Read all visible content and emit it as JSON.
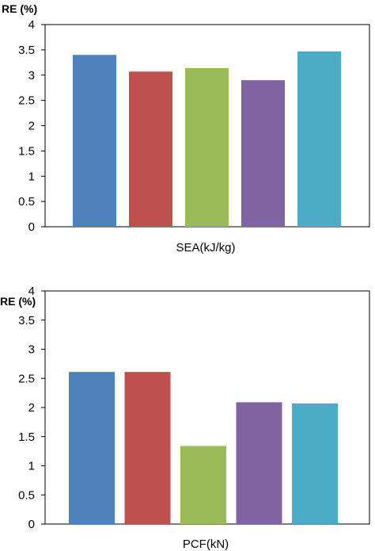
{
  "chart_data": [
    {
      "type": "bar",
      "ylabel": "RE (%)",
      "xlabel": "SEA(kJ/kg)",
      "ylim": [
        0,
        4
      ],
      "yticks": [
        "0",
        "0.5",
        "1",
        "1.5",
        "2",
        "2.5",
        "3",
        "3.5",
        "4"
      ],
      "grid": false,
      "values": [
        3.4,
        3.07,
        3.14,
        2.9,
        3.47
      ],
      "colors": [
        "#4F81BD",
        "#C0504D",
        "#9BBB59",
        "#8064A2",
        "#4BACC6"
      ]
    },
    {
      "type": "bar",
      "ylabel": "RE (%)",
      "xlabel": "PCF(kN)",
      "ylim": [
        0,
        4
      ],
      "yticks": [
        "0",
        "0.5",
        "1",
        "1.5",
        "2",
        "2.5",
        "3",
        "3.5",
        "4"
      ],
      "grid": false,
      "values": [
        2.61,
        2.61,
        1.34,
        2.09,
        2.07
      ],
      "colors": [
        "#4F81BD",
        "#C0504D",
        "#9BBB59",
        "#8064A2",
        "#4BACC6"
      ]
    }
  ]
}
